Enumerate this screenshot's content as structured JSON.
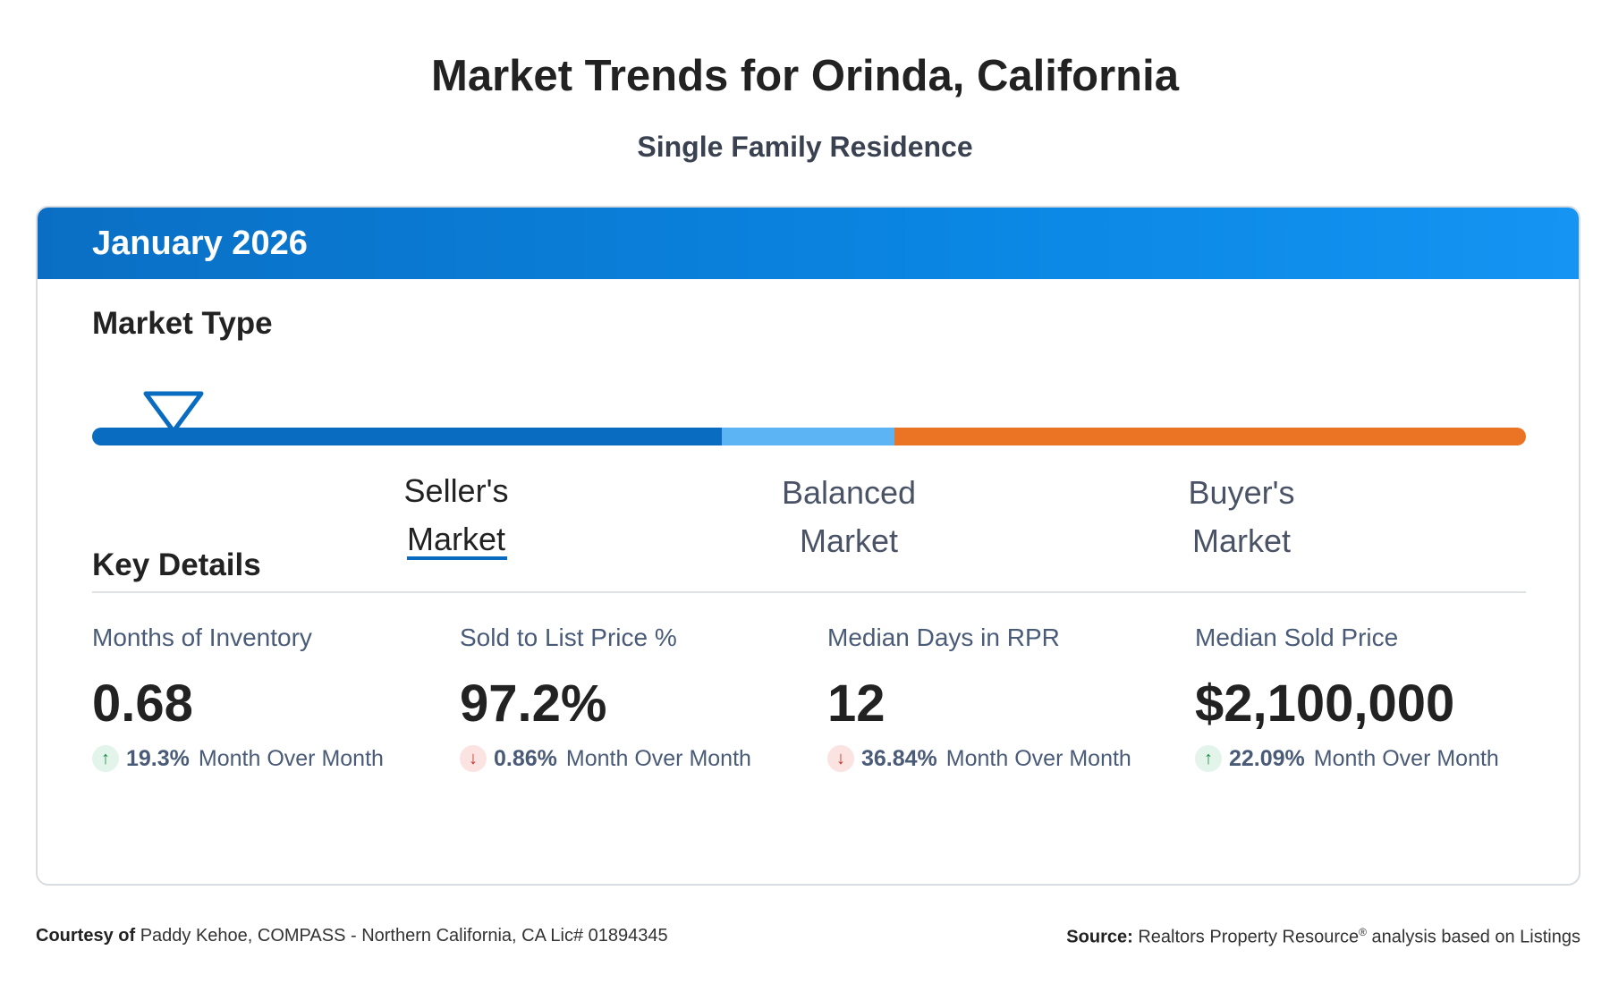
{
  "title": "Market Trends for Orinda, California",
  "subtitle": "Single Family Residence",
  "period": "January 2026",
  "market_type": {
    "heading": "Market Type",
    "labels": [
      {
        "line1": "Seller's",
        "line2": "Market"
      },
      {
        "line1": "Balanced",
        "line2": "Market"
      },
      {
        "line1": "Buyer's",
        "line2": "Market"
      }
    ],
    "active": "Seller's Market",
    "colors": {
      "seller": "#0a6cc0",
      "balanced": "#5db4f5",
      "buyer": "#ea7324"
    }
  },
  "key_details": {
    "heading": "Key Details",
    "metrics": [
      {
        "label": "Months of Inventory",
        "value": "0.68",
        "change": "19.3%",
        "direction": "up",
        "change_text": "Month Over Month"
      },
      {
        "label": "Sold to List Price %",
        "value": "97.2%",
        "change": "0.86%",
        "direction": "down",
        "change_text": "Month Over Month"
      },
      {
        "label": "Median Days in RPR",
        "value": "12",
        "change": "36.84%",
        "direction": "down",
        "change_text": "Month Over Month"
      },
      {
        "label": "Median Sold Price",
        "value": "$2,100,000",
        "change": "22.09%",
        "direction": "up",
        "change_text": "Month Over Month"
      }
    ]
  },
  "footer": {
    "courtesy_label": "Courtesy of",
    "courtesy_text": "Paddy Kehoe, COMPASS - Northern California, CA Lic# 01894345",
    "source_label": "Source:",
    "source_text": "Realtors Property Resource",
    "source_mark": "®",
    "source_suffix": "analysis based on Listings"
  },
  "icons": {
    "up": "arrow-up-icon",
    "down": "arrow-down-icon",
    "marker": "triangle-marker-icon"
  }
}
